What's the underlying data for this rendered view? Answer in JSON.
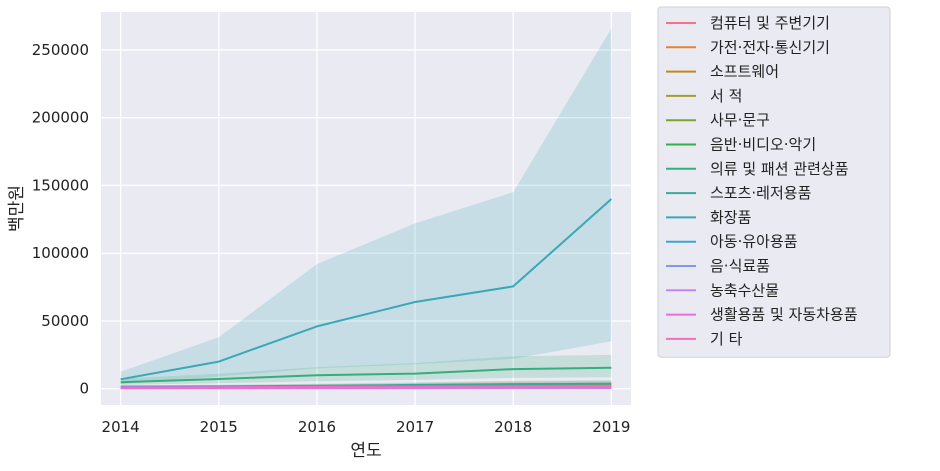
{
  "chart_data": {
    "type": "line",
    "xlabel": "연도",
    "ylabel": "백만원",
    "x": [
      2014,
      2015,
      2016,
      2017,
      2018,
      2019
    ],
    "xlim": [
      2013.8,
      2019.2
    ],
    "ylim": [
      -12000,
      278000
    ],
    "yticks": [
      0,
      50000,
      100000,
      150000,
      200000,
      250000
    ],
    "grid": true,
    "background": "#eaeaf2",
    "legend_position": "outside-right",
    "series": [
      {
        "name": "컴퓨터 및 주변기기",
        "color": "#f77189",
        "values": [
          1200,
          1400,
          1700,
          2000,
          2300,
          2600
        ],
        "ci_low": [
          600,
          700,
          900,
          1000,
          1200,
          1300
        ],
        "ci_high": [
          2000,
          2300,
          2800,
          3300,
          3800,
          4200
        ]
      },
      {
        "name": "가전·전자·통신기기",
        "color": "#e7822f",
        "values": [
          1300,
          1500,
          1900,
          2400,
          3300,
          3600
        ],
        "ci_low": [
          700,
          800,
          1000,
          1300,
          1800,
          2000
        ],
        "ci_high": [
          2200,
          2600,
          3300,
          4200,
          5500,
          6000
        ]
      },
      {
        "name": "소프트웨어",
        "color": "#c4871f",
        "values": [
          900,
          900,
          1000,
          1000,
          1100,
          1100
        ],
        "ci_low": [
          500,
          500,
          600,
          600,
          600,
          600
        ],
        "ci_high": [
          1400,
          1400,
          1500,
          1500,
          1600,
          1600
        ]
      },
      {
        "name": "서 적",
        "color": "#a89b31",
        "values": [
          1100,
          1200,
          1300,
          1500,
          1800,
          2000
        ],
        "ci_low": [
          600,
          700,
          800,
          900,
          1000,
          1100
        ],
        "ci_high": [
          1700,
          1800,
          2000,
          2300,
          2800,
          3100
        ]
      },
      {
        "name": "사무·문구",
        "color": "#7ca32d",
        "values": [
          700,
          700,
          800,
          900,
          1000,
          1100
        ],
        "ci_low": [
          300,
          300,
          400,
          500,
          500,
          600
        ],
        "ci_high": [
          1100,
          1100,
          1300,
          1400,
          1600,
          1700
        ]
      },
      {
        "name": "음반·비디오·악기",
        "color": "#34ae4a",
        "values": [
          600,
          600,
          700,
          800,
          900,
          1000
        ],
        "ci_low": [
          300,
          300,
          300,
          400,
          400,
          500
        ],
        "ci_high": [
          1000,
          1000,
          1200,
          1300,
          1500,
          1600
        ]
      },
      {
        "name": "의류 및 패션 관련상품",
        "color": "#36ad7e",
        "values": [
          4800,
          7200,
          10000,
          11200,
          14500,
          15500
        ],
        "ci_low": [
          2800,
          4000,
          5500,
          6500,
          8000,
          8500
        ],
        "ci_high": [
          7500,
          11000,
          16000,
          19000,
          24000,
          25000
        ]
      },
      {
        "name": "스포츠·레저용품",
        "color": "#38aa9c",
        "values": [
          1500,
          1700,
          2200,
          2800,
          3400,
          3800
        ],
        "ci_low": [
          800,
          900,
          1200,
          1500,
          1800,
          2000
        ],
        "ci_high": [
          2500,
          2900,
          3700,
          4700,
          5800,
          6400
        ]
      },
      {
        "name": "화장품",
        "color": "#3aa8b5",
        "values": [
          7000,
          20000,
          46000,
          64000,
          75500,
          140000
        ],
        "ci_low": [
          3500,
          9000,
          15000,
          18000,
          22000,
          35000
        ],
        "ci_high": [
          12500,
          38000,
          92000,
          122000,
          145000,
          266000
        ]
      },
      {
        "name": "아동·유아용품",
        "color": "#3da4d7",
        "values": [
          1400,
          1500,
          1700,
          1800,
          2000,
          2100
        ],
        "ci_low": [
          700,
          800,
          900,
          900,
          1000,
          1100
        ],
        "ci_high": [
          2300,
          2500,
          2800,
          3000,
          3300,
          3500
        ]
      },
      {
        "name": "음·식료품",
        "color": "#8694f5",
        "values": [
          800,
          900,
          1100,
          1300,
          1500,
          1700
        ],
        "ci_low": [
          400,
          500,
          600,
          700,
          800,
          900
        ],
        "ci_high": [
          1300,
          1500,
          1800,
          2100,
          2400,
          2700
        ]
      },
      {
        "name": "농축수산물",
        "color": "#c384f3",
        "values": [
          300,
          300,
          400,
          400,
          500,
          500
        ],
        "ci_low": [
          100,
          100,
          200,
          200,
          200,
          200
        ],
        "ci_high": [
          500,
          500,
          700,
          700,
          800,
          800
        ]
      },
      {
        "name": "생활용품 및 자동차용품",
        "color": "#ee6ae0",
        "values": [
          1000,
          1100,
          1300,
          1500,
          1800,
          2000
        ],
        "ci_low": [
          500,
          600,
          700,
          800,
          900,
          1000
        ],
        "ci_high": [
          1600,
          1800,
          2100,
          2400,
          2900,
          3200
        ]
      },
      {
        "name": "기 타",
        "color": "#f66fb5",
        "values": [
          600,
          700,
          900,
          1000,
          1200,
          1300
        ],
        "ci_low": [
          300,
          300,
          400,
          500,
          600,
          600
        ],
        "ci_high": [
          1000,
          1100,
          1500,
          1600,
          1900,
          2100
        ]
      }
    ]
  }
}
